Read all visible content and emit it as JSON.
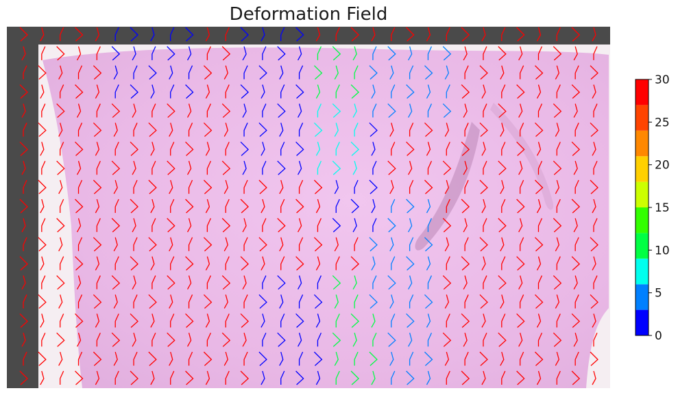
{
  "chart_data": {
    "type": "heatmap",
    "title": "Deformation Field",
    "xlabel": "",
    "ylabel": "",
    "grid": false,
    "legend": "colorbar-right",
    "colorbar": {
      "min": 0,
      "max": 30,
      "ticks": [
        0,
        5,
        10,
        15,
        20,
        25,
        30
      ],
      "tick_labels": [
        "0",
        "5",
        "10",
        "15",
        "20",
        "25",
        "30"
      ],
      "bands": [
        {
          "from": 0,
          "to": 3,
          "color": "#0000ff"
        },
        {
          "from": 3,
          "to": 6,
          "color": "#0080ff"
        },
        {
          "from": 6,
          "to": 9,
          "color": "#00ffee"
        },
        {
          "from": 9,
          "to": 12,
          "color": "#00ff44"
        },
        {
          "from": 12,
          "to": 15,
          "color": "#33ff00"
        },
        {
          "from": 15,
          "to": 18,
          "color": "#ccff00"
        },
        {
          "from": 18,
          "to": 21,
          "color": "#ffd000"
        },
        {
          "from": 21,
          "to": 24,
          "color": "#ff8800"
        },
        {
          "from": 24,
          "to": 27,
          "color": "#ff4400"
        },
        {
          "from": 27,
          "to": 30,
          "color": "#ff0000"
        }
      ]
    },
    "grid_size": {
      "cols": 32,
      "rows": 19
    },
    "regions": [
      {
        "col_start": 5,
        "col_end": 9,
        "row_start": 0,
        "row_end": 3,
        "magnitude": 2
      },
      {
        "col_start": 12,
        "col_end": 15,
        "row_start": 0,
        "row_end": 7,
        "magnitude": 2
      },
      {
        "col_start": 15,
        "col_end": 18,
        "row_start": 1,
        "row_end": 3,
        "magnitude": 9
      },
      {
        "col_start": 19,
        "col_end": 23,
        "row_start": 1,
        "row_end": 4,
        "magnitude": 5
      },
      {
        "col_start": 14,
        "col_end": 18,
        "row_start": 4,
        "row_end": 7,
        "magnitude": 6
      },
      {
        "col_start": 17,
        "col_end": 19,
        "row_start": 5,
        "row_end": 10,
        "magnitude": 2
      },
      {
        "col_start": 19,
        "col_end": 22,
        "row_start": 9,
        "row_end": 14,
        "magnitude": 4
      },
      {
        "col_start": 13,
        "col_end": 16,
        "row_start": 13,
        "row_end": 18,
        "magnitude": 2
      },
      {
        "col_start": 16,
        "col_end": 19,
        "row_start": 13,
        "row_end": 18,
        "magnitude": 10
      },
      {
        "col_start": 20,
        "col_end": 22,
        "row_start": 14,
        "row_end": 18,
        "magnitude": 4
      }
    ],
    "background_magnitude": 29
  }
}
